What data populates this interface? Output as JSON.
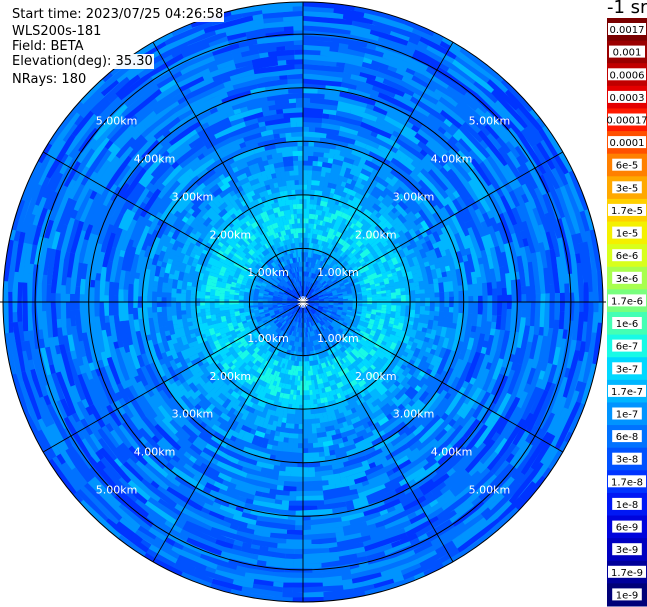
{
  "info": {
    "start_time": "Start time: 2023/07/25 04:26:58",
    "device": "WLS200s-181",
    "field": "Field: BETA",
    "elevation": "Elevation(deg): 35.30",
    "nrays": "NRays: 180"
  },
  "chart_data": {
    "type": "heatmap",
    "projection": "polar-ppi",
    "unit_label": "-1 sr",
    "range_rings_km": [
      1,
      2,
      3,
      4,
      5
    ],
    "ring_labels": [
      "1.00km",
      "2.00km",
      "3.00km",
      "4.00km",
      "5.00km"
    ],
    "max_range_km": 5.6,
    "radial_lines_deg": [
      0,
      30,
      60,
      90,
      120,
      150,
      180,
      210,
      240,
      270,
      300,
      330
    ],
    "colorbar": {
      "labels": [
        "0.0017",
        "0.001",
        "0.0006",
        "0.0003",
        "0.00017",
        "0.0001",
        "6e-5",
        "3e-5",
        "1.7e-5",
        "1e-5",
        "6e-6",
        "3e-6",
        "1.7e-6",
        "1e-6",
        "6e-7",
        "3e-7",
        "1.7e-7",
        "1e-7",
        "6e-8",
        "3e-8",
        "1.7e-8",
        "1e-8",
        "6e-9",
        "3e-9",
        "1.7e-9",
        "1e-9"
      ],
      "colors": [
        "#7a0000",
        "#9a0000",
        "#c00000",
        "#e40000",
        "#ff1a00",
        "#ff5000",
        "#ff8000",
        "#ffa800",
        "#ffd000",
        "#f4f000",
        "#d8ff1c",
        "#a8ff4e",
        "#78ff7e",
        "#44ffb4",
        "#18fae6",
        "#00d8ff",
        "#00b6ff",
        "#0094ff",
        "#0072ff",
        "#0052ff",
        "#0034ff",
        "#0018f4",
        "#0004dc",
        "#0000c0",
        "#00009a",
        "#000078"
      ]
    },
    "beta_profile": [
      {
        "range_km": 0.0,
        "log10_beta": -7.8
      },
      {
        "range_km": 0.4,
        "log10_beta": -7.3
      },
      {
        "range_km": 0.9,
        "log10_beta": -7.0
      },
      {
        "range_km": 1.3,
        "log10_beta": -6.45
      },
      {
        "range_km": 1.8,
        "log10_beta": -6.5
      },
      {
        "range_km": 2.2,
        "log10_beta": -6.85
      },
      {
        "range_km": 3.0,
        "log10_beta": -7.1
      },
      {
        "range_km": 4.0,
        "log10_beta": -7.2
      },
      {
        "range_km": 5.6,
        "log10_beta": -7.3
      }
    ]
  }
}
